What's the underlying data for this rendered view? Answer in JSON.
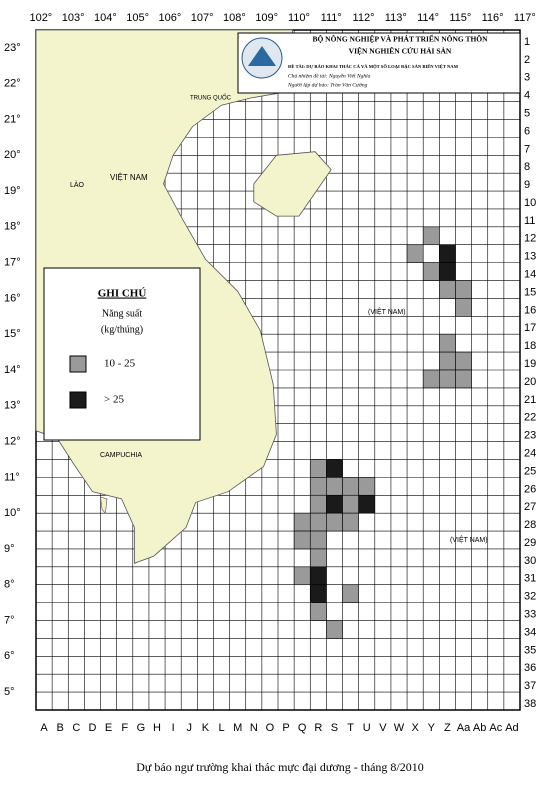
{
  "header": {
    "ministry": "BỘ NÔNG NGHIỆP VÀ PHÁT TRIỂN NÔNG THÔN",
    "institute": "VIỆN NGHIÊN CỨU HẢI SẢN",
    "project": "ĐỀ TÀI: DỰ BÁO KHAI THÁC CÁ VÀ MỘT SỐ LOẠI ĐẶC SẢN BIỂN VIỆT NAM",
    "editor": "Chủ nhiệm đề tài: Nguyễn Viết Nghĩa",
    "compiler": "Người lập dự báo: Trần Văn Cường"
  },
  "legend": {
    "title": "GHI CHÚ",
    "subtitle": "Năng suất",
    "unit": "(kg/thúng)",
    "items": [
      {
        "label": "10 - 25",
        "color": "#9a9a9a"
      },
      {
        "label": "> 25",
        "color": "#1a1a1a"
      }
    ]
  },
  "axes": {
    "longitudes": [
      "102°",
      "103°",
      "104°",
      "105°",
      "106°",
      "107°",
      "108°",
      "109°",
      "110°",
      "111°",
      "112°",
      "113°",
      "114°",
      "115°",
      "116°",
      "117°"
    ],
    "latitudes": [
      "23°",
      "22°",
      "21°",
      "20°",
      "19°",
      "18°",
      "17°",
      "16°",
      "15°",
      "14°",
      "13°",
      "12°",
      "11°",
      "10°",
      "9°",
      "8°",
      "7°",
      "6°",
      "5°"
    ],
    "columns": [
      "A",
      "B",
      "C",
      "D",
      "E",
      "F",
      "G",
      "H",
      "I",
      "J",
      "K",
      "L",
      "M",
      "N",
      "O",
      "P",
      "Q",
      "R",
      "S",
      "T",
      "U",
      "V",
      "W",
      "X",
      "Y",
      "Z",
      "Aa",
      "Ab",
      "Ac",
      "Ad"
    ],
    "rows": [
      1,
      2,
      3,
      4,
      5,
      6,
      7,
      8,
      9,
      10,
      11,
      12,
      13,
      14,
      15,
      16,
      17,
      18,
      19,
      20,
      21,
      22,
      23,
      24,
      25,
      26,
      27,
      28,
      29,
      30,
      31,
      32,
      33,
      34,
      35,
      36,
      37,
      38
    ]
  },
  "places": {
    "vietnam": "VIỆT NAM",
    "laos": "LÀO",
    "cambodia": "CAMPUCHIA",
    "china": "TRUNG QUỐC",
    "paracel": "(VIỆT NAM)",
    "spratly": "(VIỆT NAM)"
  },
  "caption": "Dự báo ngư trường khai thác mực đại dương - tháng 8/2010"
}
